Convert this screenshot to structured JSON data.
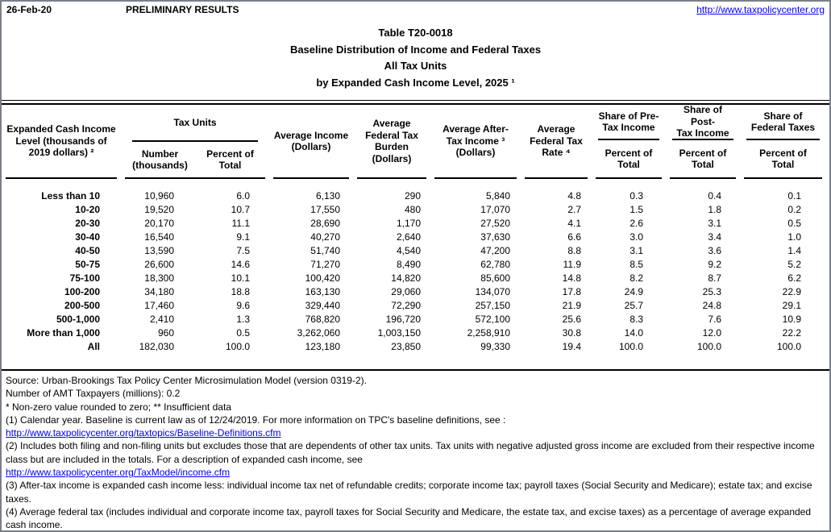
{
  "page": {
    "date": "26-Feb-20",
    "status": "PRELIMINARY RESULTS",
    "site_url": "http://www.taxpolicycenter.org"
  },
  "title": {
    "line1": "Table T20-0018",
    "line2": "Baseline Distribution of Income and Federal Taxes",
    "line3": "All Tax Units",
    "line4": "by Expanded Cash Income Level, 2025 ¹"
  },
  "table": {
    "headers": {
      "income_level": "Expanded Cash Income\nLevel (thousands of\n2019 dollars) ²",
      "tax_units": "Tax Units",
      "tax_units_number": "Number\n(thousands)",
      "percent_of_total": "Percent of\nTotal",
      "avg_income": "Average Income\n(Dollars)",
      "avg_federal_tax_burden": "Average\nFederal Tax\nBurden\n(Dollars)",
      "avg_after_tax_income": "Average After-\nTax Income ³\n(Dollars)",
      "avg_federal_tax_rate": "Average\nFederal Tax\nRate ⁴",
      "share_pre_tax": "Share of Pre-\nTax Income",
      "share_post_tax": "Share of Post-\nTax Income",
      "share_federal_taxes": "Share of\nFederal Taxes"
    },
    "rows": [
      [
        "Less than 10",
        "10,960",
        "6.0",
        "6,130",
        "290",
        "5,840",
        "4.8",
        "0.3",
        "0.4",
        "0.1"
      ],
      [
        "10-20",
        "19,520",
        "10.7",
        "17,550",
        "480",
        "17,070",
        "2.7",
        "1.5",
        "1.8",
        "0.2"
      ],
      [
        "20-30",
        "20,170",
        "11.1",
        "28,690",
        "1,170",
        "27,520",
        "4.1",
        "2.6",
        "3.1",
        "0.5"
      ],
      [
        "30-40",
        "16,540",
        "9.1",
        "40,270",
        "2,640",
        "37,630",
        "6.6",
        "3.0",
        "3.4",
        "1.0"
      ],
      [
        "40-50",
        "13,590",
        "7.5",
        "51,740",
        "4,540",
        "47,200",
        "8.8",
        "3.1",
        "3.6",
        "1.4"
      ],
      [
        "50-75",
        "26,600",
        "14.6",
        "71,270",
        "8,490",
        "62,780",
        "11.9",
        "8.5",
        "9.2",
        "5.2"
      ],
      [
        "75-100",
        "18,300",
        "10.1",
        "100,420",
        "14,820",
        "85,600",
        "14.8",
        "8.2",
        "8.7",
        "6.2"
      ],
      [
        "100-200",
        "34,180",
        "18.8",
        "163,130",
        "29,060",
        "134,070",
        "17.8",
        "24.9",
        "25.3",
        "22.9"
      ],
      [
        "200-500",
        "17,460",
        "9.6",
        "329,440",
        "72,290",
        "257,150",
        "21.9",
        "25.7",
        "24.8",
        "29.1"
      ],
      [
        "500-1,000",
        "2,410",
        "1.3",
        "768,820",
        "196,720",
        "572,100",
        "25.6",
        "8.3",
        "7.6",
        "10.9"
      ],
      [
        "More than 1,000",
        "960",
        "0.5",
        "3,262,060",
        "1,003,150",
        "2,258,910",
        "30.8",
        "14.0",
        "12.0",
        "22.2"
      ],
      [
        "All",
        "182,030",
        "100.0",
        "123,180",
        "23,850",
        "99,330",
        "19.4",
        "100.0",
        "100.0",
        "100.0"
      ]
    ]
  },
  "footnotes": [
    {
      "type": "text",
      "text": "Source: Urban-Brookings Tax Policy Center Microsimulation Model (version 0319-2)."
    },
    {
      "type": "text",
      "text": "Number of AMT Taxpayers (millions): 0.2"
    },
    {
      "type": "text",
      "text": "* Non-zero value rounded to zero; ** Insufficient data"
    },
    {
      "type": "text",
      "text": "(1) Calendar year. Baseline is current law as of 12/24/2019. For more information on TPC's baseline definitions, see :"
    },
    {
      "type": "link",
      "text": "http://www.taxpolicycenter.org/taxtopics/Baseline-Definitions.cfm"
    },
    {
      "type": "text",
      "text": "(2) Includes both filing and non-filing units but excludes those that are dependents of other tax units. Tax units with negative adjusted gross income are excluded from their respective income class but are included in the totals. For a description of expanded cash income, see"
    },
    {
      "type": "link",
      "text": "http://www.taxpolicycenter.org/TaxModel/income.cfm"
    },
    {
      "type": "text",
      "text": "(3) After-tax income is expanded cash income less: individual income tax net of refundable credits; corporate income tax; payroll taxes (Social Security and Medicare); estate tax; and excise taxes."
    },
    {
      "type": "text",
      "text": "(4) Average federal tax (includes individual and corporate income tax, payroll taxes for Social Security and Medicare, the estate tax, and excise taxes) as a percentage of average expanded cash income."
    }
  ]
}
